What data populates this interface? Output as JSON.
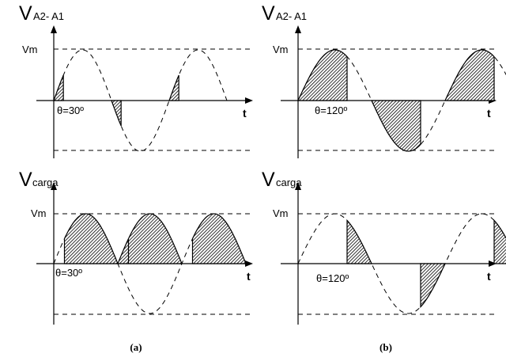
{
  "panels": [
    {
      "id": "a-top",
      "ylabel_main": "V",
      "ylabel_sub": "A2- A1",
      "vm_label": "Vm",
      "theta_label": "θ=30º",
      "t_label": "t",
      "firing_angle_deg": 30,
      "mode": "source"
    },
    {
      "id": "b-top",
      "ylabel_main": "V",
      "ylabel_sub": "A2- A1",
      "vm_label": "Vm",
      "theta_label": "θ=120º",
      "t_label": "t",
      "firing_angle_deg": 120,
      "mode": "source"
    },
    {
      "id": "a-bottom",
      "ylabel_main": "V",
      "ylabel_sub": "carga",
      "vm_label": "Vm",
      "theta_label": "θ=30º",
      "t_label": "t",
      "firing_angle_deg": 30,
      "mode": "load"
    },
    {
      "id": "b-bottom",
      "ylabel_main": "V",
      "ylabel_sub": "carga",
      "vm_label": "Vm",
      "theta_label": "θ=120º",
      "t_label": "t",
      "firing_angle_deg": 120,
      "mode": "load"
    }
  ],
  "captions": {
    "a": "(a)",
    "b": "(b)"
  }
}
